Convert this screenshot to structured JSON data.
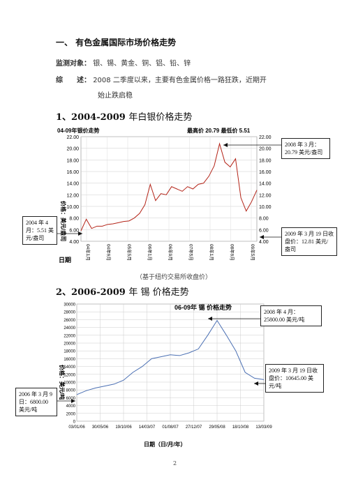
{
  "heading": "一、 有色金属国际市场价格走势",
  "monitor": {
    "label": "监测对象：",
    "value": "银、锡、黄金、铜、铝、铅、锌"
  },
  "summary": {
    "label": "综　　述：",
    "line1": "2008 二季度以来，主要有色金属价格一路狂跌，近期开",
    "line2": "始止跌启稳"
  },
  "section1": {
    "title_prefix": "1、2004-2009",
    "title_suffix": "年白银价格走势"
  },
  "section2": {
    "title_prefix": "2、2006-2009",
    "title_suffix": "年 锡 价格走势"
  },
  "caption": "（基于纽约交易所收盘价）",
  "page_number": "2",
  "silver_callouts": {
    "top": "2008 年 3 月：20.79 美元/盎司",
    "left": "2004 年 4 月：5.51 美元/盎司",
    "right": "2009 年 3 月 19 日收盘价：12.81 美元/盎司"
  },
  "tin_callouts": {
    "top": "2008 年 4 月：25800.00 美元/吨",
    "left": "2006 年 3 月 9 日：6800.00 美元/吨",
    "right": "2009 年 3 月 19 日收盘价：10645.00 美元/吨"
  },
  "chart_data": [
    {
      "type": "line",
      "title": "04-09年银价走势",
      "stats_text": "最高价 20.79 最低价 5.51",
      "xlabel": "日期",
      "ylabel": "价格：美元/盎司",
      "ylim": [
        4,
        22
      ],
      "yticks": [
        "4.00",
        "6.00",
        "8.00",
        "10.00",
        "12.00",
        "14.00",
        "16.00",
        "18.00",
        "20.00",
        "22.00"
      ],
      "xticks": [
        "04年1月",
        "04年9月",
        "05年5月",
        "06年1月",
        "06年9月",
        "07年5月",
        "08年1月",
        "08年9月",
        "09年5月"
      ],
      "x": [
        0,
        2,
        4,
        6,
        8,
        10,
        12,
        14,
        16,
        18,
        20,
        22,
        24,
        26,
        28,
        30,
        32,
        34,
        36,
        38,
        40,
        42,
        44,
        46,
        48,
        50,
        52,
        54,
        56,
        58,
        60,
        62,
        64,
        66
      ],
      "values": [
        5.8,
        7.8,
        6.2,
        6.6,
        6.6,
        6.9,
        7.0,
        7.2,
        7.4,
        7.5,
        8.0,
        8.8,
        10.3,
        13.8,
        11.0,
        12.2,
        12.0,
        13.4,
        13.0,
        12.6,
        13.4,
        13.0,
        13.8,
        14.0,
        15.2,
        17.0,
        20.79,
        17.6,
        16.8,
        18.2,
        11.5,
        9.2,
        10.8,
        12.81
      ],
      "grid": true
    },
    {
      "type": "line",
      "title": "06-09年 锡 价格走势",
      "xlabel": "日期（日/月/年）",
      "ylabel": "价格：美元/吨",
      "ylim": [
        0,
        30000
      ],
      "yticks": [
        "0",
        "2000",
        "4000",
        "6000",
        "8000",
        "10000",
        "12000",
        "14000",
        "16000",
        "18000",
        "20000",
        "22000",
        "24000",
        "26000",
        "28000",
        "30000"
      ],
      "xticks": [
        "03/01/06",
        "30/05/06",
        "19/10/06",
        "14/03/07",
        "01/08/07",
        "27/12/07",
        "29/05/08",
        "18/10/08",
        "13/03/09"
      ],
      "x": [
        0,
        2,
        4,
        6,
        8,
        10,
        12,
        14,
        16,
        18,
        20,
        22,
        24,
        26,
        28,
        30,
        32,
        34,
        36,
        38,
        40
      ],
      "values": [
        6800,
        7800,
        8500,
        9000,
        9500,
        10500,
        12500,
        14000,
        16000,
        16500,
        17000,
        16800,
        17500,
        18500,
        22000,
        25800,
        22000,
        18000,
        12500,
        11000,
        10645
      ],
      "grid": true
    }
  ]
}
